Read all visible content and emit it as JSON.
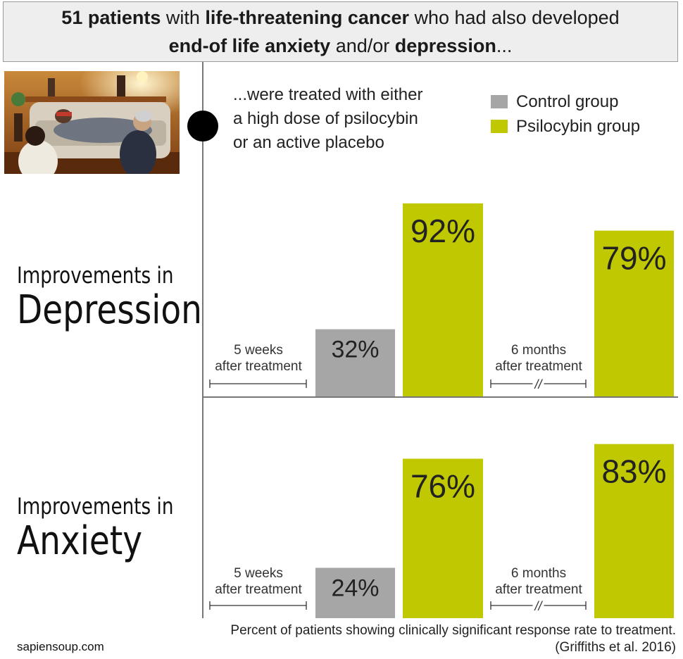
{
  "header": {
    "line1": [
      "51 patients",
      " with ",
      "life-threatening cancer",
      " who had also developed"
    ],
    "line2": [
      "end-of life anxiety",
      " and/or ",
      "depression",
      "..."
    ]
  },
  "intro": {
    "line1": "...were treated with either",
    "line2": "a high dose of psilocybin",
    "line3": "or an active placebo"
  },
  "legend": [
    {
      "label": "Control group",
      "color": "#a6a6a6"
    },
    {
      "label": "Psilocybin group",
      "color": "#bfc800"
    }
  ],
  "panels": {
    "depression": {
      "heading_small": "Improvements in",
      "heading_big": "Depression"
    },
    "anxiety": {
      "heading_small": "Improvements in",
      "heading_big": "Anxiety"
    }
  },
  "periods": {
    "p1_line1": "5 weeks",
    "p1_line2": "after treatment",
    "p2_line1": "6 months",
    "p2_line2": "after treatment",
    "break_mark": "//"
  },
  "chart_data": [
    {
      "type": "bar",
      "title": "Improvements in Depression",
      "categories": [
        "5 weeks after treatment",
        "6 months after treatment"
      ],
      "series": [
        {
          "name": "Control group",
          "values": [
            32,
            null
          ]
        },
        {
          "name": "Psilocybin group",
          "values": [
            92,
            79
          ]
        }
      ],
      "labels": {
        "control_5w": "32%",
        "psilo_5w": "92%",
        "psilo_6m": "79%"
      },
      "ylim": [
        0,
        100
      ]
    },
    {
      "type": "bar",
      "title": "Improvements in Anxiety",
      "categories": [
        "5 weeks after treatment",
        "6 months after treatment"
      ],
      "series": [
        {
          "name": "Control group",
          "values": [
            24,
            null
          ]
        },
        {
          "name": "Psilocybin group",
          "values": [
            76,
            83
          ]
        }
      ],
      "labels": {
        "control_5w": "24%",
        "psilo_5w": "76%",
        "psilo_6m": "83%"
      },
      "ylim": [
        0,
        100
      ]
    }
  ],
  "footer": {
    "line1": "Percent of patients showing clinically significant response rate to treatment.",
    "line2": "(Griffiths et al. 2016)"
  },
  "site": "sapiensoup.com"
}
